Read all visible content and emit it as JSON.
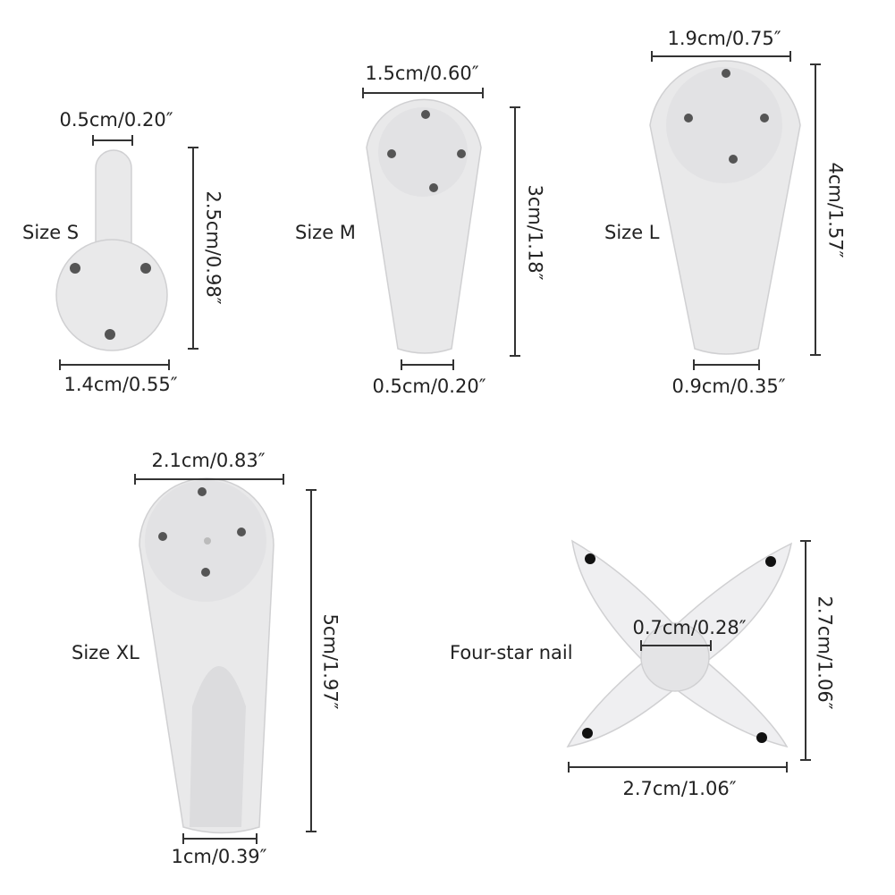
{
  "colors": {
    "hook": "#e9e9ea",
    "hook_shade": "#d6d6d8",
    "pin": "#555555",
    "dimension_line": "#333333"
  },
  "items": [
    {
      "name": "Size S",
      "top_dim": "0.5cm/0.20″",
      "side_dim": "2.5cm/0.98″",
      "bottom_dim": "1.4cm/0.55″"
    },
    {
      "name": "Size M",
      "top_dim": "1.5cm/0.60″",
      "side_dim": "3cm/1.18″",
      "bottom_dim": "0.5cm/0.20″"
    },
    {
      "name": "Size L",
      "top_dim": "1.9cm/0.75″",
      "side_dim": "4cm/1.57″",
      "bottom_dim": "0.9cm/0.35″"
    },
    {
      "name": "Size XL",
      "top_dim": "2.1cm/0.83″",
      "side_dim": "5cm/1.97″",
      "bottom_dim": "1cm/0.39″"
    },
    {
      "name": "Four-star nail",
      "center_dim": "0.7cm/0.28″",
      "side_dim": "2.7cm/1.06″",
      "bottom_dim": "2.7cm/1.06″"
    }
  ]
}
